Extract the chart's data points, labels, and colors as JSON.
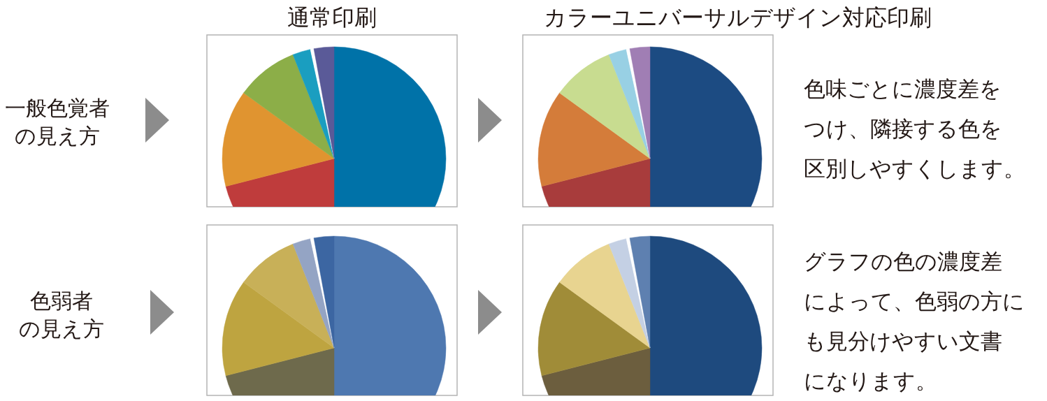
{
  "chart_data": [
    {
      "type": "pie",
      "title": "通常印刷",
      "categories": [
        null,
        null,
        null,
        null,
        null,
        null,
        null
      ],
      "values": [
        50,
        21,
        14,
        9,
        2.6,
        0.5,
        2.9
      ],
      "colors": [
        "#0072a8",
        "#bf3c3c",
        "#e09430",
        "#8cae48",
        "#1a9ec0",
        "#ffffff",
        "#5a5a98"
      ],
      "annotations": [
        "一般色覚者",
        "の見え方"
      ]
    },
    {
      "type": "pie",
      "title": "カラーユニバーサルデザイン対応印刷",
      "categories": [
        null,
        null,
        null,
        null,
        null,
        null,
        null
      ],
      "values": [
        50,
        21,
        14,
        9,
        2.6,
        0.5,
        2.9
      ],
      "colors": [
        "#1c4b82",
        "#a83c3c",
        "#d47c3a",
        "#c8dc90",
        "#98d0e4",
        "#ffffff",
        "#a07eb4"
      ],
      "annotations": [
        "色味ごとに濃度差を",
        "つけ、隣接する色を",
        "区別しやすくします。"
      ]
    },
    {
      "type": "pie",
      "categories": [
        null,
        null,
        null,
        null,
        null,
        null,
        null
      ],
      "values": [
        50,
        21,
        14,
        9,
        2.6,
        0.5,
        2.9
      ],
      "colors": [
        "#4e78b0",
        "#6e6a4c",
        "#bea440",
        "#c8b058",
        "#94a4c4",
        "#ffffff",
        "#3c66a2"
      ],
      "annotations": [
        "色弱者",
        "の見え方"
      ]
    },
    {
      "type": "pie",
      "categories": [
        null,
        null,
        null,
        null,
        null,
        null,
        null
      ],
      "values": [
        50,
        21,
        14,
        9,
        2.6,
        0.5,
        2.9
      ],
      "colors": [
        "#1e4a7e",
        "#6c5e3e",
        "#a08c38",
        "#e8d490",
        "#c4d0e4",
        "#ffffff",
        "#5e80b0"
      ],
      "annotations": [
        "グラフの色の濃度差",
        "によって、色弱の方に",
        "も見分けやすい文書",
        "になります。"
      ]
    }
  ]
}
